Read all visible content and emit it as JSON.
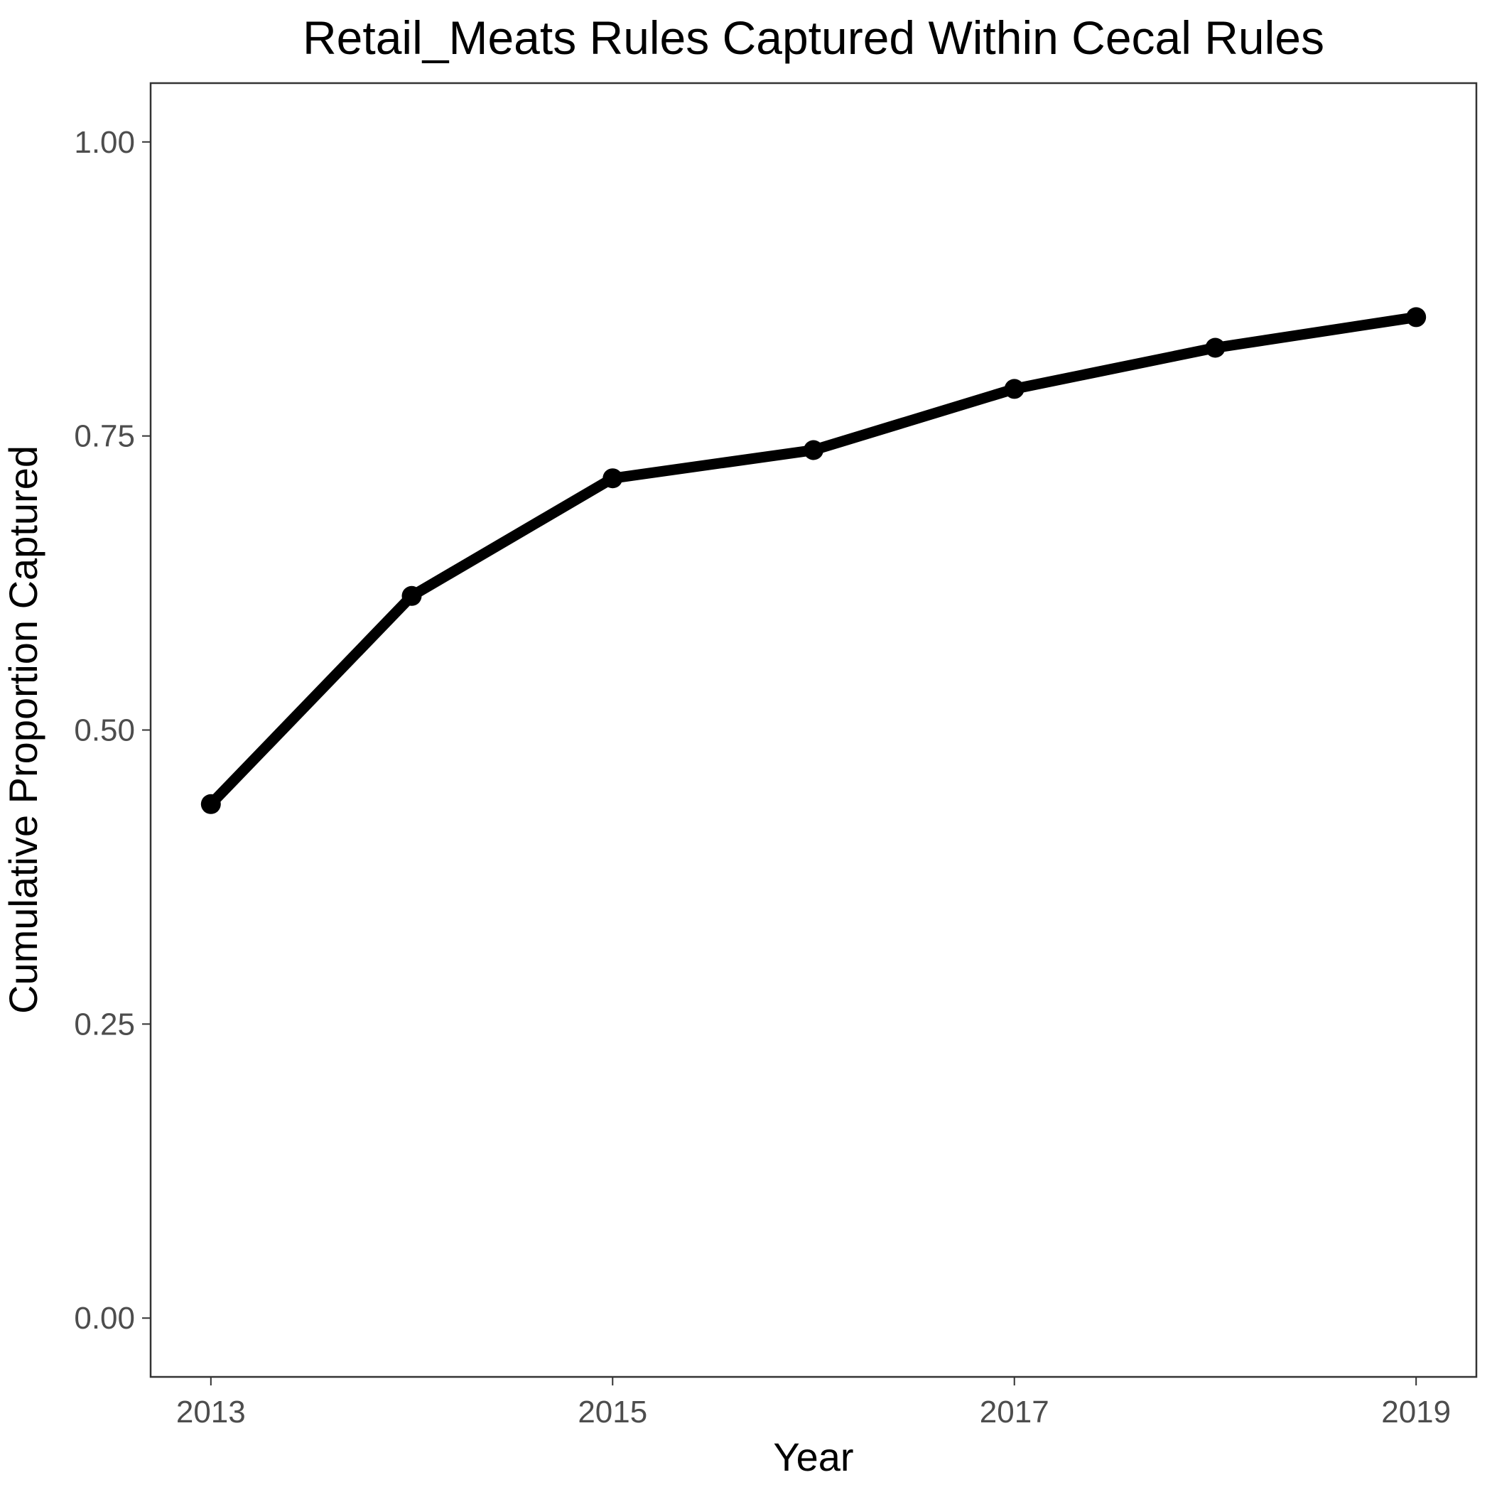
{
  "chart_data": {
    "type": "line",
    "title": "Retail_Meats Rules Captured Within Cecal Rules",
    "xlabel": "Year",
    "ylabel": "Cumulative Proportion Captured",
    "x": [
      2013,
      2014,
      2015,
      2016,
      2017,
      2018,
      2019
    ],
    "series": [
      {
        "values": [
          0.437,
          0.614,
          0.714,
          0.738,
          0.79,
          0.825,
          0.851
        ]
      }
    ],
    "xlim": [
      2012.7,
      2019.3
    ],
    "ylim": [
      -0.05,
      1.05
    ],
    "xticks": [
      2013,
      2015,
      2017,
      2019
    ],
    "xtick_labels": [
      "2013",
      "2015",
      "2017",
      "2019"
    ],
    "yticks": [
      0,
      0.25,
      0.5,
      0.75,
      1
    ],
    "ytick_labels": [
      "0.00",
      "0.25",
      "0.50",
      "0.75",
      "1.00"
    ],
    "grid": false,
    "legend": "none",
    "colors": {
      "line": "#000000",
      "point": "#000000"
    }
  }
}
